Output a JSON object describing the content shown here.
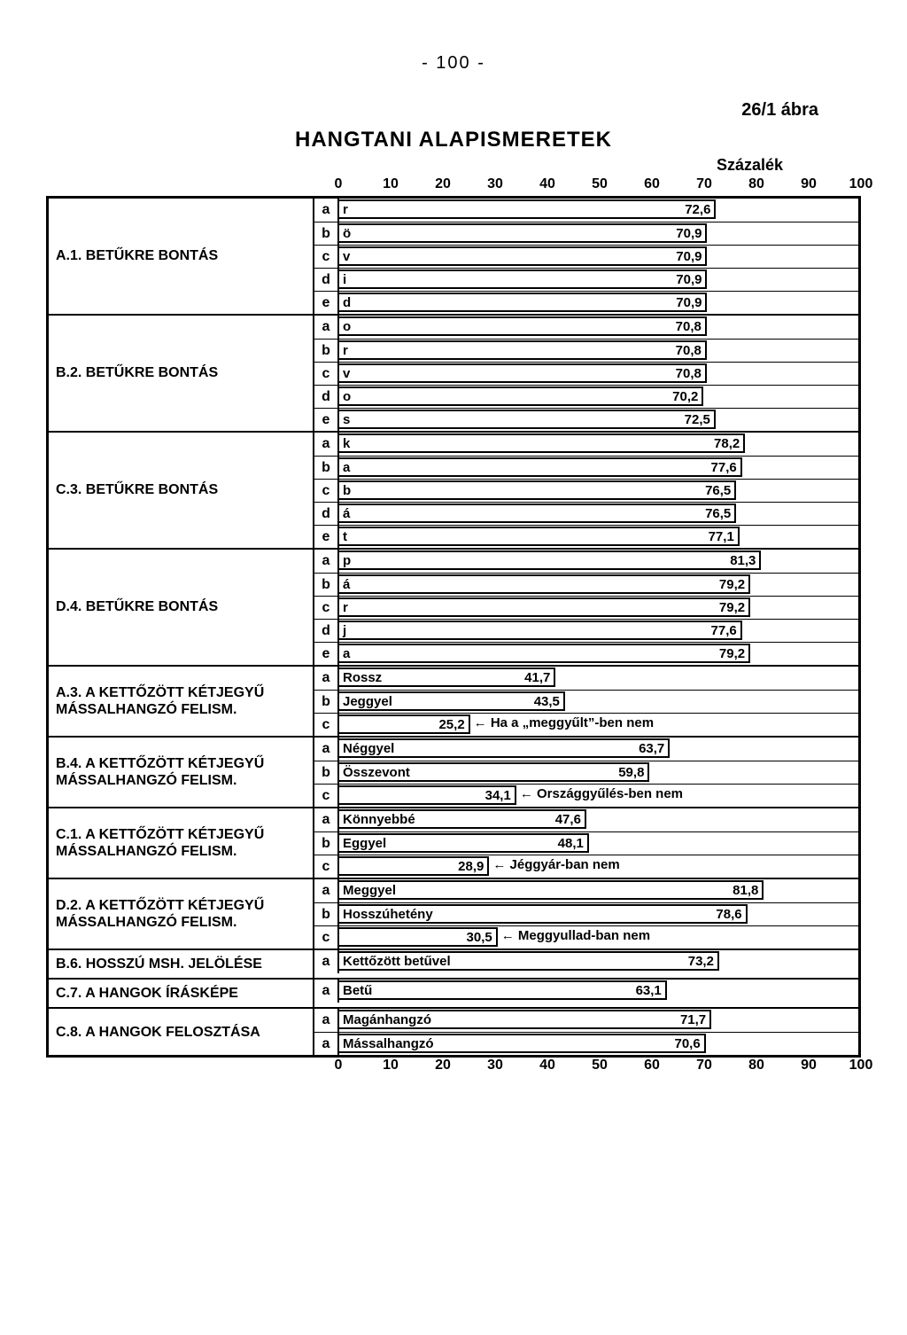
{
  "page_number": "- 100 -",
  "figure_label": "26/1 ábra",
  "title": "HANGTANI ALAPISMERETEK",
  "axis_title": "Százalék",
  "xaxis": {
    "min": 0,
    "max": 100,
    "ticks": [
      0,
      10,
      20,
      30,
      40,
      50,
      60,
      70,
      80,
      90,
      100
    ]
  },
  "style": {
    "bar_border_color": "#000000",
    "bar_fill_color": "#ffffff",
    "text_color": "#000000",
    "border_width_outer": 3,
    "border_width_inner": 2,
    "font_family": "Arial",
    "title_fontsize": 24,
    "label_fontsize": 16,
    "value_fontsize": 15
  },
  "groups": [
    {
      "label": "A.1. BETŰKRE BONTÁS",
      "rows": [
        {
          "sub": "a",
          "left": "r",
          "value": 72.6,
          "value_text": "72,6"
        },
        {
          "sub": "b",
          "left": "ö",
          "value": 70.9,
          "value_text": "70,9"
        },
        {
          "sub": "c",
          "left": "v",
          "value": 70.9,
          "value_text": "70,9"
        },
        {
          "sub": "d",
          "left": "i",
          "value": 70.9,
          "value_text": "70,9"
        },
        {
          "sub": "e",
          "left": "d",
          "value": 70.9,
          "value_text": "70,9"
        }
      ]
    },
    {
      "label": "B.2. BETŰKRE BONTÁS",
      "rows": [
        {
          "sub": "a",
          "left": "o",
          "value": 70.8,
          "value_text": "70,8"
        },
        {
          "sub": "b",
          "left": "r",
          "value": 70.8,
          "value_text": "70,8"
        },
        {
          "sub": "c",
          "left": "v",
          "value": 70.8,
          "value_text": "70,8"
        },
        {
          "sub": "d",
          "left": "o",
          "value": 70.2,
          "value_text": "70,2"
        },
        {
          "sub": "e",
          "left": "s",
          "value": 72.5,
          "value_text": "72,5"
        }
      ]
    },
    {
      "label": "C.3. BETŰKRE BONTÁS",
      "rows": [
        {
          "sub": "a",
          "left": "k",
          "value": 78.2,
          "value_text": "78,2"
        },
        {
          "sub": "b",
          "left": "a",
          "value": 77.6,
          "value_text": "77,6"
        },
        {
          "sub": "c",
          "left": "b",
          "value": 76.5,
          "value_text": "76,5"
        },
        {
          "sub": "d",
          "left": "á",
          "value": 76.5,
          "value_text": "76,5"
        },
        {
          "sub": "e",
          "left": "t",
          "value": 77.1,
          "value_text": "77,1"
        }
      ]
    },
    {
      "label": "D.4. BETŰKRE BONTÁS",
      "rows": [
        {
          "sub": "a",
          "left": "p",
          "value": 81.3,
          "value_text": "81,3"
        },
        {
          "sub": "b",
          "left": "á",
          "value": 79.2,
          "value_text": "79,2"
        },
        {
          "sub": "c",
          "left": "r",
          "value": 79.2,
          "value_text": "79,2"
        },
        {
          "sub": "d",
          "left": "j",
          "value": 77.6,
          "value_text": "77,6"
        },
        {
          "sub": "e",
          "left": "a",
          "value": 79.2,
          "value_text": "79,2"
        }
      ]
    },
    {
      "label": "A.3. A KETTŐZÖTT KÉTJEGYŰ MÁSSALHANGZÓ FELISM.",
      "rows": [
        {
          "sub": "a",
          "left": "Rossz",
          "value": 41.7,
          "value_text": "41,7"
        },
        {
          "sub": "b",
          "left": "Jeggyel",
          "value": 43.5,
          "value_text": "43,5"
        },
        {
          "sub": "c",
          "left": "",
          "value": 25.2,
          "value_text": "25,2",
          "note": "← Ha a „meggyűlt”-ben nem"
        }
      ]
    },
    {
      "label": "B.4. A KETTŐZÖTT KÉTJEGYŰ MÁSSALHANGZÓ FELISM.",
      "rows": [
        {
          "sub": "a",
          "left": "Néggyel",
          "value": 63.7,
          "value_text": "63,7"
        },
        {
          "sub": "b",
          "left": "Összevont",
          "value": 59.8,
          "value_text": "59,8"
        },
        {
          "sub": "c",
          "left": "",
          "value": 34.1,
          "value_text": "34,1",
          "note": "← Országgyűlés-ben nem"
        }
      ]
    },
    {
      "label": "C.1. A KETTŐZÖTT KÉTJEGYŰ MÁSSALHANGZÓ FELISM.",
      "rows": [
        {
          "sub": "a",
          "left": "Könnyebbé",
          "value": 47.6,
          "value_text": "47,6"
        },
        {
          "sub": "b",
          "left": "Eggyel",
          "value": 48.1,
          "value_text": "48,1"
        },
        {
          "sub": "c",
          "left": "",
          "value": 28.9,
          "value_text": "28,9",
          "note": "← Jéggyár-ban nem"
        }
      ]
    },
    {
      "label": "D.2. A KETTŐZÖTT KÉTJEGYŰ MÁSSALHANGZÓ FELISM.",
      "rows": [
        {
          "sub": "a",
          "left": "Meggyel",
          "value": 81.8,
          "value_text": "81,8"
        },
        {
          "sub": "b",
          "left": "Hosszúhetény",
          "value": 78.6,
          "value_text": "78,6"
        },
        {
          "sub": "c",
          "left": "",
          "value": 30.5,
          "value_text": "30,5",
          "note": "← Meggyullad-ban nem"
        }
      ]
    },
    {
      "label": "B.6. HOSSZÚ MSH. JELÖLÉSE",
      "rows": [
        {
          "sub": "a",
          "left": "Kettőzött betűvel",
          "value": 73.2,
          "value_text": "73,2"
        }
      ]
    },
    {
      "label": "C.7. A HANGOK ÍRÁSKÉPE",
      "rows": [
        {
          "sub": "a",
          "left": "Betű",
          "value": 63.1,
          "value_text": "63,1"
        }
      ]
    },
    {
      "label": "C.8. A HANGOK FELOSZTÁSA",
      "rows": [
        {
          "sub": "a",
          "left": "Magánhangzó",
          "value": 71.7,
          "value_text": "71,7"
        },
        {
          "sub": "a",
          "left": "Mássalhangzó",
          "value": 70.6,
          "value_text": "70,6"
        }
      ]
    }
  ]
}
